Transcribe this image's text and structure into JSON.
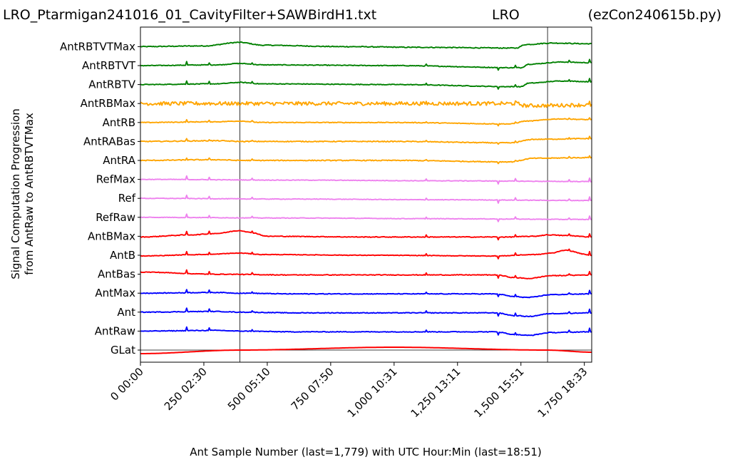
{
  "chart_data": {
    "type": "line",
    "title_left": "LRO_Ptarmigan241016_01_CavityFilter+SAWBirdH1.txt",
    "title_center": "LRO",
    "title_right": "(ezCon240615b.py)",
    "xlabel": "Ant Sample Number (last=1,779) with UTC Hour:Min (last=18:51)",
    "ylabel_line1": "Signal Computation Progression",
    "ylabel_line2": "from AntRaw to AntRBTVTMax",
    "xlim": [
      0,
      1779
    ],
    "x_ticks": [
      {
        "value": 0,
        "label": "0  00:00"
      },
      {
        "value": 250,
        "label": "250  02:30"
      },
      {
        "value": 500,
        "label": "500  05:10"
      },
      {
        "value": 750,
        "label": "750  07:50"
      },
      {
        "value": 1000,
        "label": "1,000  10:31"
      },
      {
        "value": 1250,
        "label": "1,250  13:11"
      },
      {
        "value": 1500,
        "label": "1,500  15:51"
      },
      {
        "value": 1750,
        "label": "1,750  18:33"
      }
    ],
    "vertical_lines": [
      392,
      1605
    ],
    "series": [
      {
        "name": "AntRBTVTMax",
        "color": "#008000",
        "row": 16,
        "noise": 0.6,
        "knots": [
          [
            0,
            0
          ],
          [
            250,
            1
          ],
          [
            392,
            6
          ],
          [
            480,
            2
          ],
          [
            800,
            0
          ],
          [
            1100,
            -1
          ],
          [
            1480,
            -2
          ],
          [
            1520,
            3
          ],
          [
            1620,
            5
          ],
          [
            1779,
            4
          ]
        ]
      },
      {
        "name": "AntRBTVT",
        "color": "#008000",
        "row": 15,
        "noise": 0.5,
        "knots": [
          [
            0,
            0
          ],
          [
            300,
            1
          ],
          [
            392,
            3
          ],
          [
            480,
            1
          ],
          [
            1000,
            0
          ],
          [
            1500,
            -3
          ],
          [
            1530,
            2
          ],
          [
            1660,
            5
          ],
          [
            1779,
            4
          ]
        ]
      },
      {
        "name": "AntRBTV",
        "color": "#008000",
        "row": 14,
        "noise": 0.5,
        "knots": [
          [
            0,
            0
          ],
          [
            300,
            1
          ],
          [
            392,
            3
          ],
          [
            480,
            1
          ],
          [
            1000,
            0
          ],
          [
            1500,
            -3
          ],
          [
            1530,
            2
          ],
          [
            1660,
            5
          ],
          [
            1779,
            4
          ]
        ]
      },
      {
        "name": "AntRBMax",
        "color": "#FFA500",
        "row": 13,
        "noise": 2.6,
        "knots": [
          [
            0,
            0
          ],
          [
            500,
            0
          ],
          [
            1200,
            0
          ],
          [
            1480,
            0
          ],
          [
            1520,
            -3
          ],
          [
            1779,
            -2
          ]
        ]
      },
      {
        "name": "AntRB",
        "color": "#FFA500",
        "row": 12,
        "noise": 0.5,
        "knots": [
          [
            0,
            0
          ],
          [
            300,
            1
          ],
          [
            392,
            2
          ],
          [
            480,
            0
          ],
          [
            1000,
            0
          ],
          [
            1460,
            -2
          ],
          [
            1520,
            2
          ],
          [
            1650,
            5
          ],
          [
            1779,
            4
          ]
        ]
      },
      {
        "name": "AntRABas",
        "color": "#FFA500",
        "row": 11,
        "noise": 0.6,
        "knots": [
          [
            0,
            0
          ],
          [
            300,
            1
          ],
          [
            400,
            0
          ],
          [
            1000,
            0
          ],
          [
            1460,
            -2
          ],
          [
            1550,
            3
          ],
          [
            1779,
            4
          ]
        ]
      },
      {
        "name": "AntRA",
        "color": "#FFA500",
        "row": 10,
        "noise": 0.6,
        "knots": [
          [
            0,
            0
          ],
          [
            300,
            1
          ],
          [
            400,
            0
          ],
          [
            1000,
            0
          ],
          [
            1460,
            -2
          ],
          [
            1550,
            3
          ],
          [
            1779,
            4
          ]
        ]
      },
      {
        "name": "RefMax",
        "color": "#EE82EE",
        "row": 9,
        "noise": 0.4,
        "knots": [
          [
            0,
            0
          ],
          [
            600,
            -1
          ],
          [
            1200,
            -2
          ],
          [
            1779,
            -3
          ]
        ]
      },
      {
        "name": "Ref",
        "color": "#EE82EE",
        "row": 8,
        "noise": 0.4,
        "knots": [
          [
            0,
            0
          ],
          [
            600,
            -1
          ],
          [
            1200,
            -2
          ],
          [
            1779,
            -3
          ]
        ]
      },
      {
        "name": "RefRaw",
        "color": "#EE82EE",
        "row": 7,
        "noise": 0.4,
        "knots": [
          [
            0,
            0
          ],
          [
            600,
            -1
          ],
          [
            1200,
            -2
          ],
          [
            1779,
            -3
          ]
        ]
      },
      {
        "name": "AntBMax",
        "color": "#FF0000",
        "row": 6,
        "noise": 0.5,
        "knots": [
          [
            0,
            -1
          ],
          [
            200,
            2
          ],
          [
            300,
            4
          ],
          [
            392,
            8
          ],
          [
            440,
            5
          ],
          [
            500,
            0
          ],
          [
            900,
            -1
          ],
          [
            1450,
            -1
          ],
          [
            1550,
            0
          ],
          [
            1605,
            2
          ],
          [
            1680,
            1
          ],
          [
            1779,
            -1
          ]
        ]
      },
      {
        "name": "AntB",
        "color": "#FF0000",
        "row": 5,
        "noise": 0.4,
        "knots": [
          [
            0,
            -1
          ],
          [
            250,
            1
          ],
          [
            392,
            3
          ],
          [
            480,
            1
          ],
          [
            900,
            0
          ],
          [
            1400,
            -1
          ],
          [
            1560,
            1
          ],
          [
            1620,
            3
          ],
          [
            1670,
            7
          ],
          [
            1779,
            0
          ]
        ]
      },
      {
        "name": "AntBas",
        "color": "#FF0000",
        "row": 4,
        "noise": 0.5,
        "knots": [
          [
            0,
            3
          ],
          [
            300,
            0
          ],
          [
            600,
            -1
          ],
          [
            1000,
            -1
          ],
          [
            1400,
            -1
          ],
          [
            1480,
            -5
          ],
          [
            1530,
            -6
          ],
          [
            1620,
            -2
          ],
          [
            1779,
            -1
          ]
        ]
      },
      {
        "name": "AntMax",
        "color": "#0000FF",
        "row": 3,
        "noise": 0.5,
        "knots": [
          [
            0,
            0
          ],
          [
            300,
            1
          ],
          [
            392,
            0
          ],
          [
            600,
            -1
          ],
          [
            1000,
            -1
          ],
          [
            1400,
            -1
          ],
          [
            1480,
            -5
          ],
          [
            1530,
            -6
          ],
          [
            1620,
            -2
          ],
          [
            1779,
            -1
          ]
        ]
      },
      {
        "name": "Ant",
        "color": "#0000FF",
        "row": 2,
        "noise": 0.5,
        "knots": [
          [
            0,
            0
          ],
          [
            300,
            1
          ],
          [
            392,
            0
          ],
          [
            600,
            -1
          ],
          [
            1000,
            -1
          ],
          [
            1400,
            -1
          ],
          [
            1480,
            -5
          ],
          [
            1530,
            -6
          ],
          [
            1620,
            -2
          ],
          [
            1779,
            -1
          ]
        ]
      },
      {
        "name": "AntRaw",
        "color": "#0000FF",
        "row": 1,
        "noise": 0.5,
        "knots": [
          [
            0,
            0
          ],
          [
            300,
            1
          ],
          [
            392,
            0
          ],
          [
            600,
            -1
          ],
          [
            1000,
            -1
          ],
          [
            1400,
            -1
          ],
          [
            1480,
            -5
          ],
          [
            1530,
            -6
          ],
          [
            1620,
            -2
          ],
          [
            1779,
            -1
          ]
        ]
      },
      {
        "name": "GLat",
        "color": "#FF0000",
        "row": 0,
        "noise": 0,
        "knots": [
          [
            0,
            -5
          ],
          [
            392,
            0
          ],
          [
            1000,
            4
          ],
          [
            1600,
            0
          ],
          [
            1779,
            -3
          ]
        ]
      }
    ],
    "spikes": [
      [
        182,
        6
      ],
      [
        273,
        4
      ],
      [
        439,
        3
      ],
      [
        1125,
        3
      ],
      [
        1410,
        -5
      ],
      [
        1480,
        4
      ],
      [
        1690,
        3
      ],
      [
        1770,
        6
      ]
    ]
  }
}
